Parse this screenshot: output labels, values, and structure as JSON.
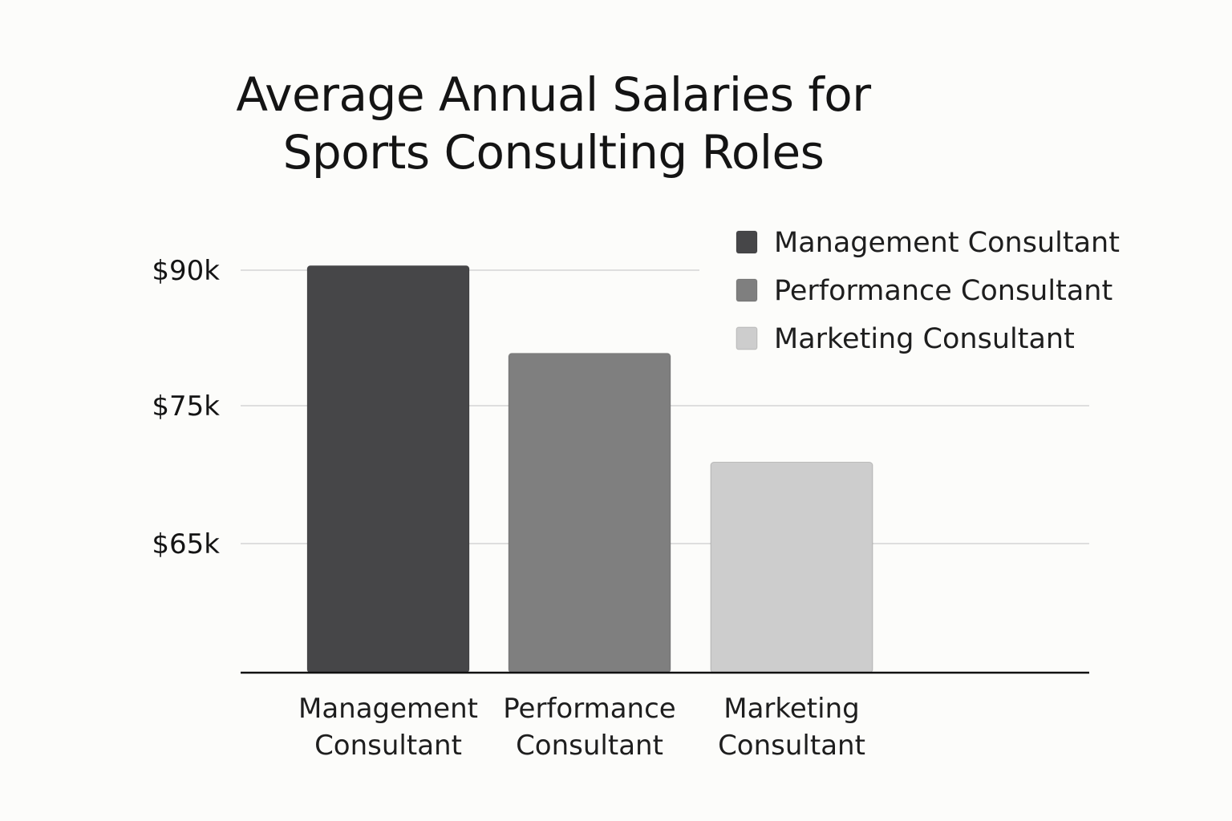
{
  "chart_data": {
    "type": "bar",
    "title_lines": [
      "Average Annual Salaries for",
      "Sports Consulting Roles"
    ],
    "categories": [
      [
        "Management",
        "Consultant"
      ],
      [
        "Performance",
        "Consultant"
      ],
      [
        "Marketing",
        "Consultant"
      ]
    ],
    "values": [
      90.5,
      80.8,
      70.9
    ],
    "colors": [
      "#464648",
      "#7f7f7f",
      "#cdcdcd"
    ],
    "y_ticks": [
      {
        "value": 90,
        "label": "$90k"
      },
      {
        "value": 75,
        "label": "$75k"
      },
      {
        "value": 65,
        "label": "$65k"
      }
    ],
    "grid": true,
    "legend": {
      "placement": "top-right",
      "items": [
        "Management Consultant",
        "Performance Consultant",
        "Marketing Consultant"
      ]
    }
  }
}
